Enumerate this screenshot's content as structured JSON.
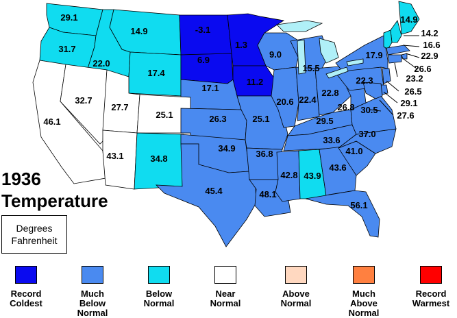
{
  "title": {
    "year": "1936",
    "label": "Temperature"
  },
  "units": {
    "line1": "Degrees",
    "line2": "Fahrenheit"
  },
  "colors": {
    "record_coldest": "#0a0af0",
    "much_below": "#4a8af0",
    "below": "#10dcf0",
    "near": "#ffffff",
    "above": "#ffd8c0",
    "much_above": "#ff8040",
    "record_warmest": "#ff0000",
    "great_lakes": "#b0f0f8"
  },
  "legend": [
    {
      "key": "record_coldest",
      "lines": [
        "Record",
        "Coldest"
      ],
      "color": "#0a0af0"
    },
    {
      "key": "much_below",
      "lines": [
        "Much",
        "Below",
        "Normal"
      ],
      "color": "#4a8af0"
    },
    {
      "key": "below",
      "lines": [
        "Below",
        "Normal"
      ],
      "color": "#10dcf0"
    },
    {
      "key": "near",
      "lines": [
        "Near",
        "Normal"
      ],
      "color": "#ffffff"
    },
    {
      "key": "above",
      "lines": [
        "Above",
        "Normal"
      ],
      "color": "#ffd8c0"
    },
    {
      "key": "much_above",
      "lines": [
        "Much",
        "Above",
        "Normal"
      ],
      "color": "#ff8040"
    },
    {
      "key": "record_warmest",
      "lines": [
        "Record",
        "Warmest"
      ],
      "color": "#ff0000"
    }
  ],
  "states": [
    {
      "name": "WA",
      "value": "29.1",
      "category": "below"
    },
    {
      "name": "OR",
      "value": "31.7",
      "category": "below"
    },
    {
      "name": "ID",
      "value": "22.0",
      "category": "below"
    },
    {
      "name": "MT",
      "value": "14.9",
      "category": "below"
    },
    {
      "name": "WY",
      "value": "17.4",
      "category": "below"
    },
    {
      "name": "ND",
      "value": "-3.1",
      "category": "record_coldest"
    },
    {
      "name": "SD",
      "value": "6.9",
      "category": "record_coldest"
    },
    {
      "name": "MN",
      "value": "1.3",
      "category": "record_coldest"
    },
    {
      "name": "IA",
      "value": "11.2",
      "category": "record_coldest"
    },
    {
      "name": "NE",
      "value": "17.1",
      "category": "much_below"
    },
    {
      "name": "CA",
      "value": "46.1",
      "category": "near"
    },
    {
      "name": "NV",
      "value": "32.7",
      "category": "near"
    },
    {
      "name": "UT",
      "value": "27.7",
      "category": "near"
    },
    {
      "name": "CO",
      "value": "25.1",
      "category": "near"
    },
    {
      "name": "AZ",
      "value": "43.1",
      "category": "near"
    },
    {
      "name": "NM",
      "value": "34.8",
      "category": "below"
    },
    {
      "name": "KS",
      "value": "26.3",
      "category": "much_below"
    },
    {
      "name": "OK",
      "value": "34.9",
      "category": "much_below"
    },
    {
      "name": "TX",
      "value": "45.4",
      "category": "much_below"
    },
    {
      "name": "MO",
      "value": "25.1",
      "category": "much_below"
    },
    {
      "name": "AR",
      "value": "36.8",
      "category": "much_below"
    },
    {
      "name": "LA",
      "value": "48.1",
      "category": "much_below"
    },
    {
      "name": "WI",
      "value": "9.0",
      "category": "much_below"
    },
    {
      "name": "MI",
      "value": "15.5",
      "category": "much_below"
    },
    {
      "name": "IL",
      "value": "20.6",
      "category": "much_below"
    },
    {
      "name": "IN",
      "value": "22.4",
      "category": "much_below"
    },
    {
      "name": "OH",
      "value": "22.8",
      "category": "much_below"
    },
    {
      "name": "KY",
      "value": "29.5",
      "category": "much_below"
    },
    {
      "name": "TN",
      "value": "33.6",
      "category": "much_below"
    },
    {
      "name": "MS",
      "value": "42.8",
      "category": "much_below"
    },
    {
      "name": "AL",
      "value": "43.9",
      "category": "below"
    },
    {
      "name": "GA",
      "value": "43.6",
      "category": "much_below"
    },
    {
      "name": "FL",
      "value": "56.1",
      "category": "much_below"
    },
    {
      "name": "SC",
      "value": "41.0",
      "category": "much_below"
    },
    {
      "name": "NC",
      "value": "37.0",
      "category": "much_below"
    },
    {
      "name": "VA",
      "value": "30.5",
      "category": "much_below"
    },
    {
      "name": "WV",
      "value": "26.8",
      "category": "much_below"
    },
    {
      "name": "PA",
      "value": "22.3",
      "category": "much_below"
    },
    {
      "name": "NY",
      "value": "17.9",
      "category": "much_below"
    },
    {
      "name": "ME",
      "value": "14.9",
      "category": "below"
    },
    {
      "name": "NH",
      "value": "14.2",
      "category": "below"
    },
    {
      "name": "VT",
      "value": "16.6",
      "category": "below"
    },
    {
      "name": "MA",
      "value": "22.9",
      "category": "much_below"
    },
    {
      "name": "RI",
      "value": "26.6",
      "category": "much_below"
    },
    {
      "name": "CT",
      "value": "23.2",
      "category": "much_below"
    },
    {
      "name": "NJ",
      "value": "26.5",
      "category": "much_below"
    },
    {
      "name": "DE",
      "value": "29.1",
      "category": "much_below"
    },
    {
      "name": "MD",
      "value": "27.6",
      "category": "much_below"
    }
  ]
}
